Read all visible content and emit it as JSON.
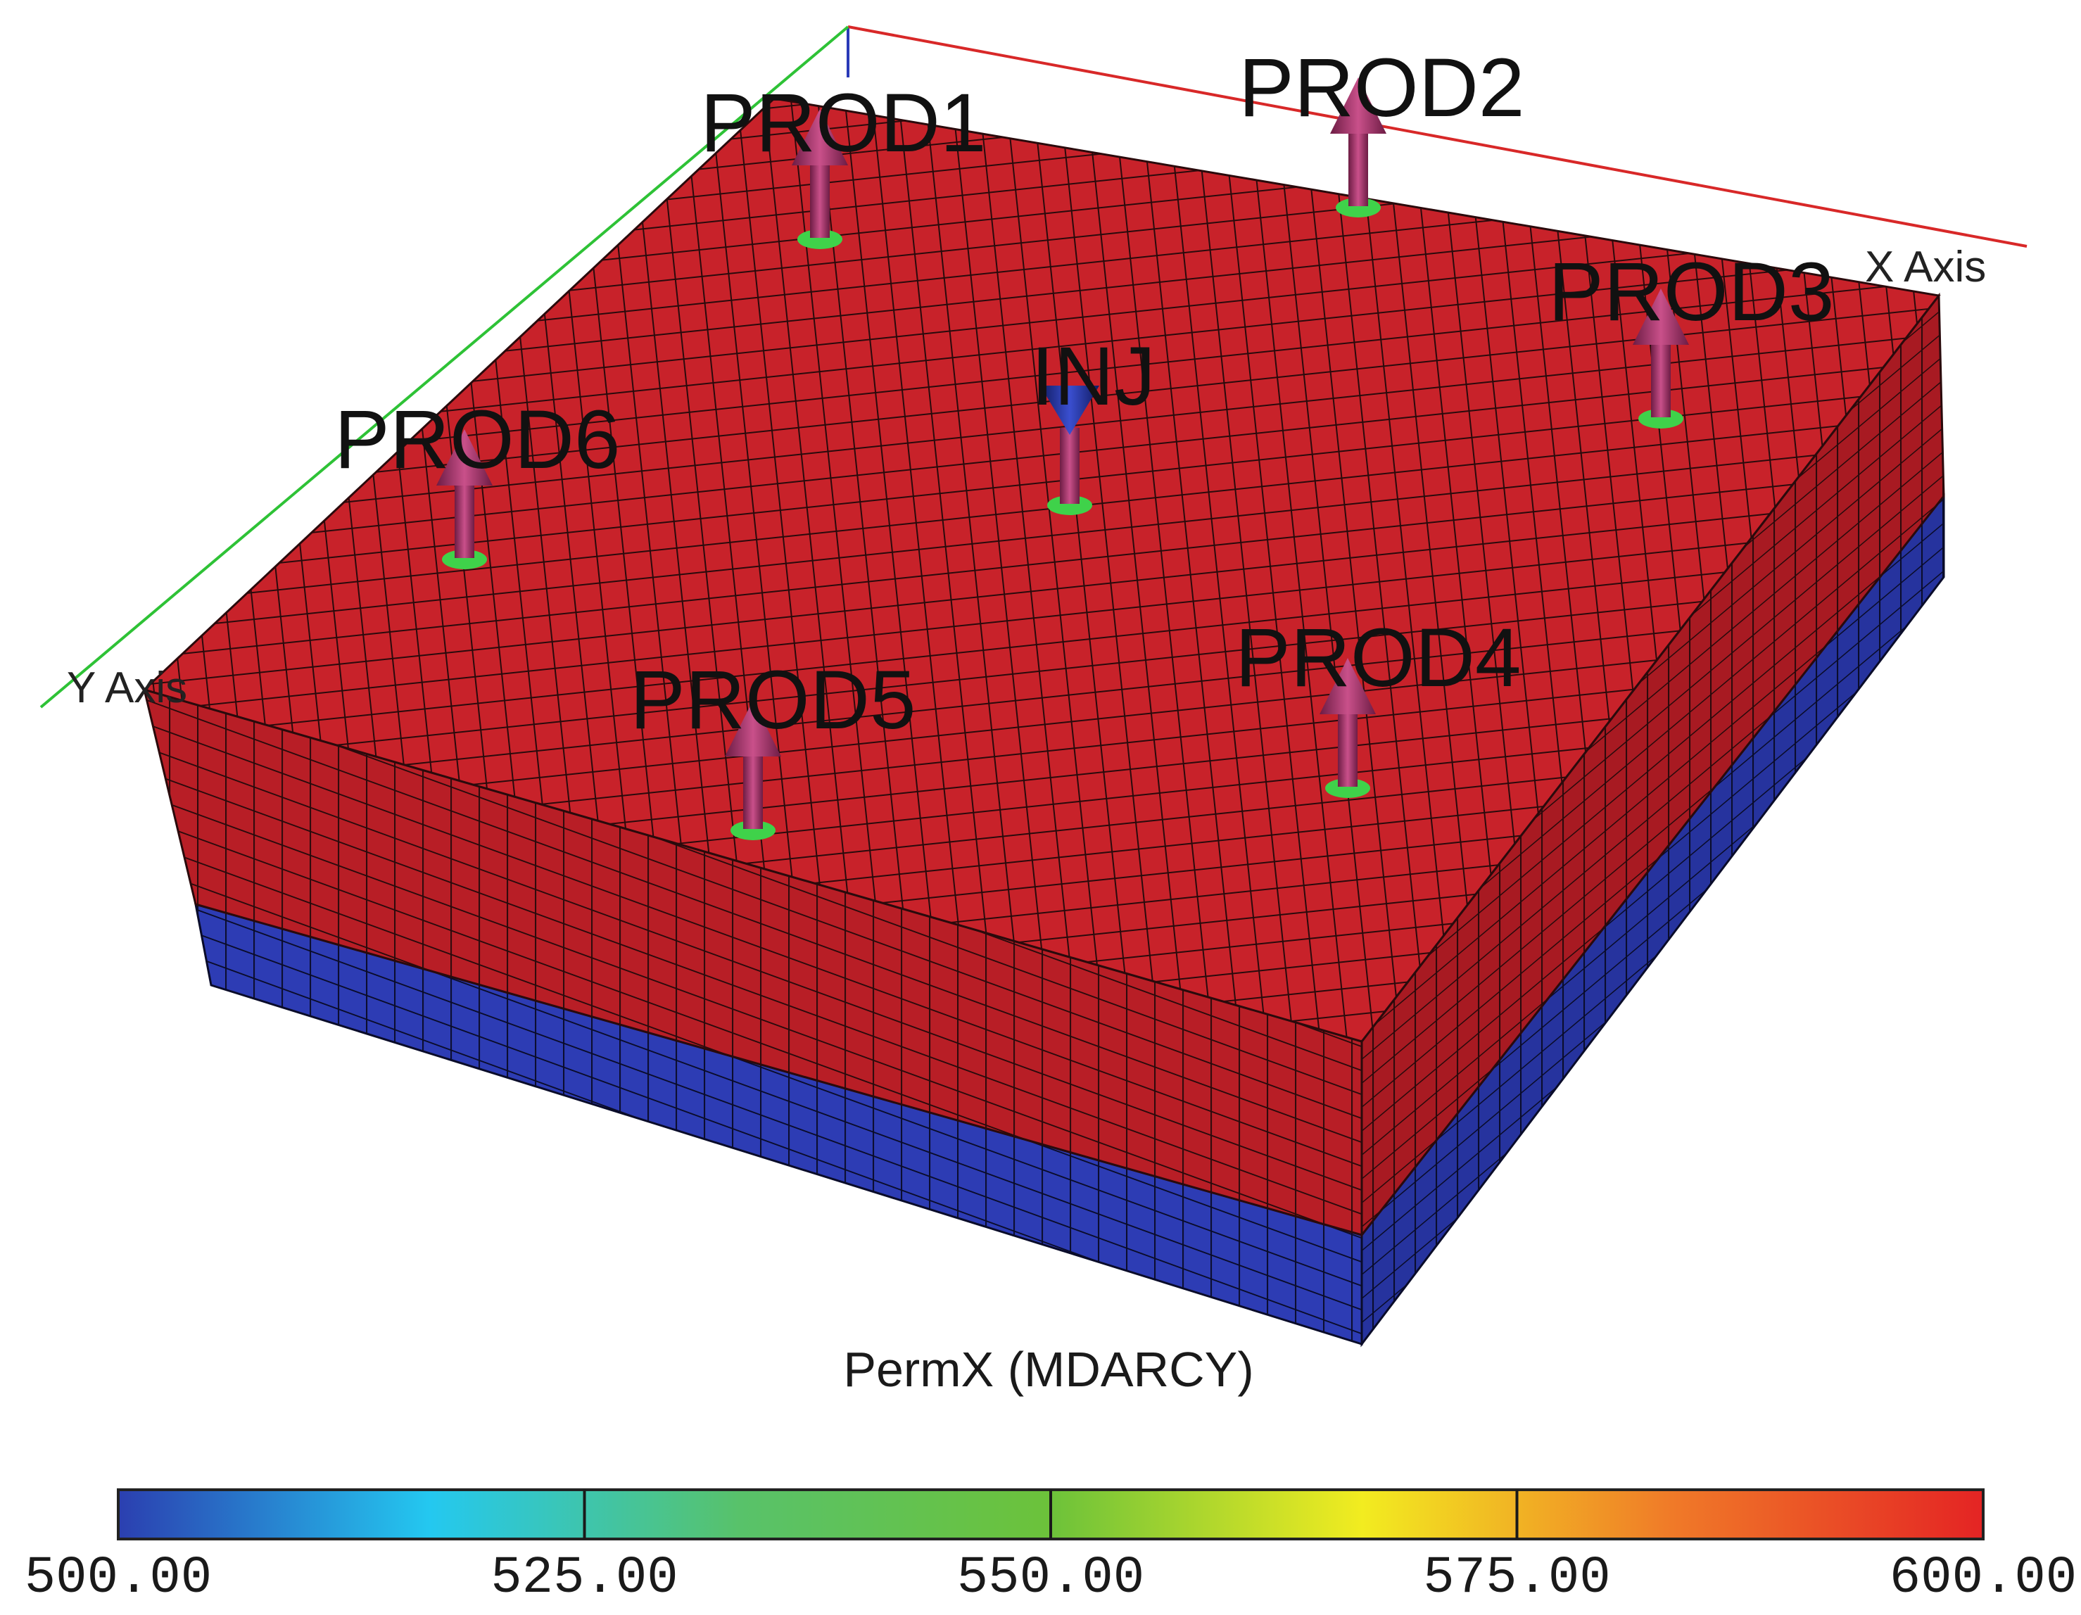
{
  "axes": {
    "x_label": "X Axis",
    "y_label": "Y Axis"
  },
  "wells": [
    {
      "name": "PROD1",
      "type": "producer"
    },
    {
      "name": "PROD2",
      "type": "producer"
    },
    {
      "name": "PROD3",
      "type": "producer"
    },
    {
      "name": "PROD6",
      "type": "producer"
    },
    {
      "name": "INJ",
      "type": "injector"
    },
    {
      "name": "PROD5",
      "type": "producer"
    },
    {
      "name": "PROD4",
      "type": "producer"
    }
  ],
  "property": {
    "title": "PermX (MDARCY)"
  },
  "colorbar": {
    "min": 500,
    "max": 600,
    "ticks": [
      "500.00",
      "525.00",
      "550.00",
      "575.00",
      "600.00"
    ],
    "stops": [
      "#2b3fb0",
      "#24c8f0",
      "#58c26a",
      "#6cc23a",
      "#f2ec20",
      "#f07a28",
      "#e42424"
    ]
  },
  "layers": {
    "upper_color": "#c8222a",
    "lower_color": "#2d3cb4",
    "upper_value": 600,
    "lower_value": 500
  },
  "colors": {
    "producer_arrow": "#a8336c",
    "injector_arrow": "#2a3cb0",
    "well_base": "#3fd24a",
    "x_axis_line": "#d82828",
    "y_axis_line": "#2ec236",
    "z_axis_line": "#2a3ab8"
  }
}
